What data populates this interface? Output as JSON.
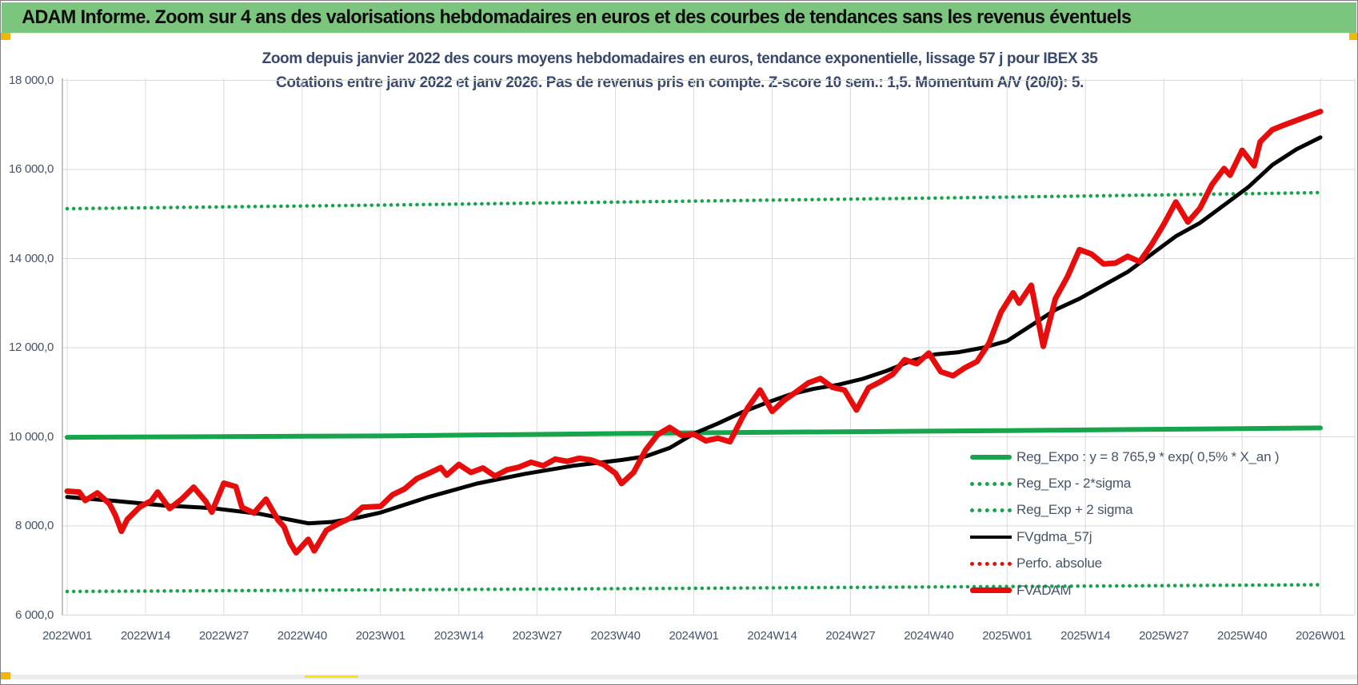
{
  "window": {
    "banner_title": "ADAM Informe. Zoom sur 4 ans des valorisations hebdomadaires en euros et des courbes de tendances sans les revenus éventuels"
  },
  "chart_data": {
    "type": "line",
    "title": "Zoom depuis janvier 2022 des cours moyens hebdomadaires en euros, tendance exponentielle, lissage 57 j pour IBEX 35",
    "subtitle": "Cotations entre janv 2022 et janv 2026. Pas de revenus pris en compte. Z-score 10 sem.: 1,5. Momentum A/V (20/0): 5.",
    "x_unit": "weeks since 2022W01",
    "xlim": [
      0,
      208
    ],
    "ylim": [
      6000,
      18000
    ],
    "grid": true,
    "legend_position": "inside-bottom-right",
    "x_ticks": {
      "weeks": [
        0,
        13,
        26,
        39,
        52,
        65,
        78,
        91,
        104,
        117,
        130,
        143,
        156,
        169,
        182,
        195,
        208
      ],
      "labels": [
        "2022W01",
        "2022W14",
        "2022W27",
        "2022W40",
        "2023W01",
        "2023W14",
        "2023W27",
        "2023W40",
        "2024W01",
        "2024W14",
        "2024W27",
        "2024W40",
        "2025W01",
        "2025W14",
        "2025W27",
        "2025W40",
        "2026W01"
      ]
    },
    "y_ticks": {
      "values": [
        6000,
        8000,
        10000,
        12000,
        14000,
        16000,
        18000
      ],
      "labels": [
        "6 000,0",
        "8 000,0",
        "10 000,0",
        "12 000,0",
        "14 000,0",
        "16 000,0",
        "18 000,0"
      ]
    },
    "colors": {
      "green": "#16a54c",
      "red": "#e80d0d",
      "black": "#000000",
      "grid": "#d9d9d9",
      "axis": "#b0b0b0",
      "text": "#44546a",
      "banner_bg": "#7cc57e"
    },
    "series": [
      {
        "name": "Reg_Exp - 2*sigma",
        "color": "#16a54c",
        "style": "dotted",
        "width": 4.5,
        "points": [
          [
            0,
            6530
          ],
          [
            52,
            6565
          ],
          [
            104,
            6600
          ],
          [
            156,
            6640
          ],
          [
            208,
            6680
          ]
        ]
      },
      {
        "name": "Reg_Exp + 2 sigma",
        "color": "#16a54c",
        "style": "dotted",
        "width": 4.5,
        "points": [
          [
            0,
            15120
          ],
          [
            52,
            15200
          ],
          [
            104,
            15290
          ],
          [
            156,
            15380
          ],
          [
            208,
            15480
          ]
        ]
      },
      {
        "name": "Reg_Expo",
        "color": "#16a54c",
        "style": "solid",
        "width": 6,
        "equation": "y = 8 765,9 * exp( 0,5% *  X_an )",
        "points": [
          [
            0,
            9990
          ],
          [
            52,
            10020
          ],
          [
            104,
            10090
          ],
          [
            156,
            10140
          ],
          [
            208,
            10200
          ]
        ]
      },
      {
        "name": "FVgdma_57j",
        "color": "#000000",
        "style": "solid",
        "width": 5,
        "points": [
          [
            0,
            8650
          ],
          [
            8,
            8560
          ],
          [
            16,
            8460
          ],
          [
            24,
            8400
          ],
          [
            32,
            8270
          ],
          [
            40,
            8060
          ],
          [
            44,
            8090
          ],
          [
            48,
            8180
          ],
          [
            52,
            8300
          ],
          [
            60,
            8650
          ],
          [
            68,
            8950
          ],
          [
            76,
            9170
          ],
          [
            84,
            9350
          ],
          [
            92,
            9480
          ],
          [
            96,
            9560
          ],
          [
            100,
            9750
          ],
          [
            104,
            10070
          ],
          [
            108,
            10300
          ],
          [
            112,
            10550
          ],
          [
            116,
            10760
          ],
          [
            120,
            10950
          ],
          [
            124,
            11080
          ],
          [
            128,
            11170
          ],
          [
            132,
            11300
          ],
          [
            136,
            11480
          ],
          [
            140,
            11700
          ],
          [
            144,
            11850
          ],
          [
            148,
            11900
          ],
          [
            152,
            12000
          ],
          [
            156,
            12150
          ],
          [
            160,
            12500
          ],
          [
            164,
            12850
          ],
          [
            168,
            13100
          ],
          [
            172,
            13400
          ],
          [
            176,
            13700
          ],
          [
            180,
            14100
          ],
          [
            184,
            14500
          ],
          [
            188,
            14800
          ],
          [
            192,
            15200
          ],
          [
            196,
            15600
          ],
          [
            200,
            16100
          ],
          [
            204,
            16450
          ],
          [
            208,
            16720
          ]
        ]
      },
      {
        "name": "Perfo. absolue",
        "color": "#e80d0d",
        "style": "dotted",
        "width": 4.5,
        "same_points_as": "FVADAM",
        "points": []
      },
      {
        "name": "FVADAM",
        "color": "#e80d0d",
        "style": "solid",
        "width": 7,
        "points": [
          [
            0,
            8780
          ],
          [
            2,
            8760
          ],
          [
            3,
            8570
          ],
          [
            5,
            8740
          ],
          [
            7,
            8500
          ],
          [
            8,
            8240
          ],
          [
            9,
            7880
          ],
          [
            10,
            8150
          ],
          [
            12,
            8420
          ],
          [
            14,
            8570
          ],
          [
            15,
            8760
          ],
          [
            17,
            8390
          ],
          [
            19,
            8600
          ],
          [
            21,
            8870
          ],
          [
            23,
            8550
          ],
          [
            24,
            8310
          ],
          [
            26,
            8960
          ],
          [
            28,
            8880
          ],
          [
            29,
            8420
          ],
          [
            31,
            8290
          ],
          [
            33,
            8600
          ],
          [
            35,
            8130
          ],
          [
            36,
            7980
          ],
          [
            37,
            7620
          ],
          [
            38,
            7400
          ],
          [
            40,
            7700
          ],
          [
            41,
            7440
          ],
          [
            43,
            7900
          ],
          [
            45,
            8050
          ],
          [
            47,
            8180
          ],
          [
            49,
            8420
          ],
          [
            52,
            8440
          ],
          [
            54,
            8700
          ],
          [
            56,
            8830
          ],
          [
            58,
            9060
          ],
          [
            60,
            9180
          ],
          [
            62,
            9310
          ],
          [
            63,
            9140
          ],
          [
            65,
            9380
          ],
          [
            67,
            9200
          ],
          [
            69,
            9300
          ],
          [
            71,
            9120
          ],
          [
            73,
            9260
          ],
          [
            75,
            9320
          ],
          [
            77,
            9430
          ],
          [
            79,
            9350
          ],
          [
            81,
            9500
          ],
          [
            83,
            9450
          ],
          [
            85,
            9520
          ],
          [
            87,
            9480
          ],
          [
            89,
            9380
          ],
          [
            91,
            9180
          ],
          [
            92,
            8950
          ],
          [
            94,
            9200
          ],
          [
            96,
            9700
          ],
          [
            98,
            10050
          ],
          [
            100,
            10210
          ],
          [
            102,
            10030
          ],
          [
            104,
            10060
          ],
          [
            106,
            9910
          ],
          [
            108,
            9970
          ],
          [
            110,
            9890
          ],
          [
            112,
            10420
          ],
          [
            113,
            10660
          ],
          [
            115,
            11050
          ],
          [
            117,
            10570
          ],
          [
            119,
            10820
          ],
          [
            121,
            11010
          ],
          [
            123,
            11210
          ],
          [
            125,
            11310
          ],
          [
            127,
            11110
          ],
          [
            129,
            11050
          ],
          [
            131,
            10600
          ],
          [
            133,
            11100
          ],
          [
            135,
            11240
          ],
          [
            137,
            11400
          ],
          [
            139,
            11730
          ],
          [
            141,
            11640
          ],
          [
            143,
            11880
          ],
          [
            145,
            11460
          ],
          [
            147,
            11370
          ],
          [
            149,
            11550
          ],
          [
            151,
            11690
          ],
          [
            153,
            12100
          ],
          [
            155,
            12800
          ],
          [
            157,
            13230
          ],
          [
            158,
            13000
          ],
          [
            160,
            13400
          ],
          [
            162,
            12030
          ],
          [
            164,
            13100
          ],
          [
            166,
            13590
          ],
          [
            168,
            14200
          ],
          [
            170,
            14100
          ],
          [
            172,
            13880
          ],
          [
            174,
            13900
          ],
          [
            176,
            14050
          ],
          [
            178,
            13930
          ],
          [
            180,
            14320
          ],
          [
            182,
            14770
          ],
          [
            184,
            15270
          ],
          [
            186,
            14820
          ],
          [
            188,
            15130
          ],
          [
            190,
            15660
          ],
          [
            192,
            16020
          ],
          [
            193,
            15870
          ],
          [
            195,
            16430
          ],
          [
            197,
            16080
          ],
          [
            198,
            16620
          ],
          [
            200,
            16890
          ],
          [
            202,
            17000
          ],
          [
            205,
            17150
          ],
          [
            208,
            17300
          ]
        ]
      }
    ]
  },
  "legend": {
    "items": [
      {
        "label": "Reg_Expo : y = 8 765,9 * exp( 0,5% *  X_an )"
      },
      {
        "label": "Reg_Exp - 2*sigma"
      },
      {
        "label": "Reg_Exp + 2 sigma"
      },
      {
        "label": "FVgdma_57j"
      },
      {
        "label": "Perfo. absolue"
      },
      {
        "label": "FVADAM"
      }
    ]
  }
}
